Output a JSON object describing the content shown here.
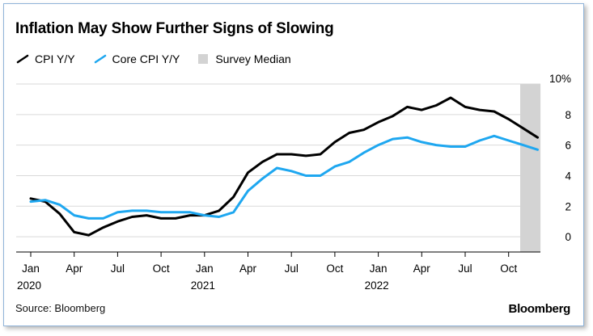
{
  "title": "Inflation May Show Further Signs of Slowing",
  "source": "Source: Bloomberg",
  "logo": "Bloomberg",
  "colors": {
    "cpi": "#000000",
    "core": "#1ea7f0",
    "survey": "#d3d3d3",
    "grid": "#d9d9d9"
  },
  "legend": [
    {
      "label": "CPI Y/Y",
      "color": "#000000",
      "kind": "line"
    },
    {
      "label": "Core CPI Y/Y",
      "color": "#1ea7f0",
      "kind": "line"
    },
    {
      "label": "Survey Median",
      "color": "#d3d3d3",
      "kind": "box"
    }
  ],
  "chart_data": {
    "type": "line",
    "title": "Inflation May Show Further Signs of Slowing",
    "x": [
      "2020-01",
      "2020-02",
      "2020-03",
      "2020-04",
      "2020-05",
      "2020-06",
      "2020-07",
      "2020-08",
      "2020-09",
      "2020-10",
      "2020-11",
      "2020-12",
      "2021-01",
      "2021-02",
      "2021-03",
      "2021-04",
      "2021-05",
      "2021-06",
      "2021-07",
      "2021-08",
      "2021-09",
      "2021-10",
      "2021-11",
      "2021-12",
      "2022-01",
      "2022-02",
      "2022-03",
      "2022-04",
      "2022-05",
      "2022-06",
      "2022-07",
      "2022-08",
      "2022-09",
      "2022-10",
      "2022-11",
      "2022-12"
    ],
    "series": [
      {
        "name": "CPI Y/Y",
        "color": "#000000",
        "values": [
          2.5,
          2.3,
          1.5,
          0.3,
          0.1,
          0.6,
          1.0,
          1.3,
          1.4,
          1.2,
          1.2,
          1.4,
          1.4,
          1.7,
          2.6,
          4.2,
          4.9,
          5.4,
          5.4,
          5.3,
          5.4,
          6.2,
          6.8,
          7.0,
          7.5,
          7.9,
          8.5,
          8.3,
          8.6,
          9.1,
          8.5,
          8.3,
          8.2,
          7.7,
          7.1,
          6.5
        ]
      },
      {
        "name": "Core CPI Y/Y",
        "color": "#1ea7f0",
        "values": [
          2.3,
          2.4,
          2.1,
          1.4,
          1.2,
          1.2,
          1.6,
          1.7,
          1.7,
          1.6,
          1.6,
          1.6,
          1.4,
          1.3,
          1.6,
          3.0,
          3.8,
          4.5,
          4.3,
          4.0,
          4.0,
          4.6,
          4.9,
          5.5,
          6.0,
          6.4,
          6.5,
          6.2,
          6.0,
          5.9,
          5.9,
          6.3,
          6.6,
          6.3,
          6.0,
          5.7
        ]
      }
    ],
    "survey_band": {
      "label": "Survey Median",
      "start": "2022-11",
      "end": "2022-12"
    },
    "yticks": [
      "0",
      "2",
      "4",
      "6",
      "8",
      "10%"
    ],
    "ylim": [
      -1,
      10
    ],
    "xticks": [
      {
        "label": "Jan",
        "year": "2020"
      },
      {
        "label": "Apr",
        "year": ""
      },
      {
        "label": "Jul",
        "year": ""
      },
      {
        "label": "Oct",
        "year": ""
      },
      {
        "label": "Jan",
        "year": "2021"
      },
      {
        "label": "Apr",
        "year": ""
      },
      {
        "label": "Jul",
        "year": ""
      },
      {
        "label": "Oct",
        "year": ""
      },
      {
        "label": "Jan",
        "year": "2022"
      },
      {
        "label": "Apr",
        "year": ""
      },
      {
        "label": "Jul",
        "year": ""
      },
      {
        "label": "Oct",
        "year": ""
      }
    ],
    "grid": true,
    "legend_position": "top-left"
  }
}
